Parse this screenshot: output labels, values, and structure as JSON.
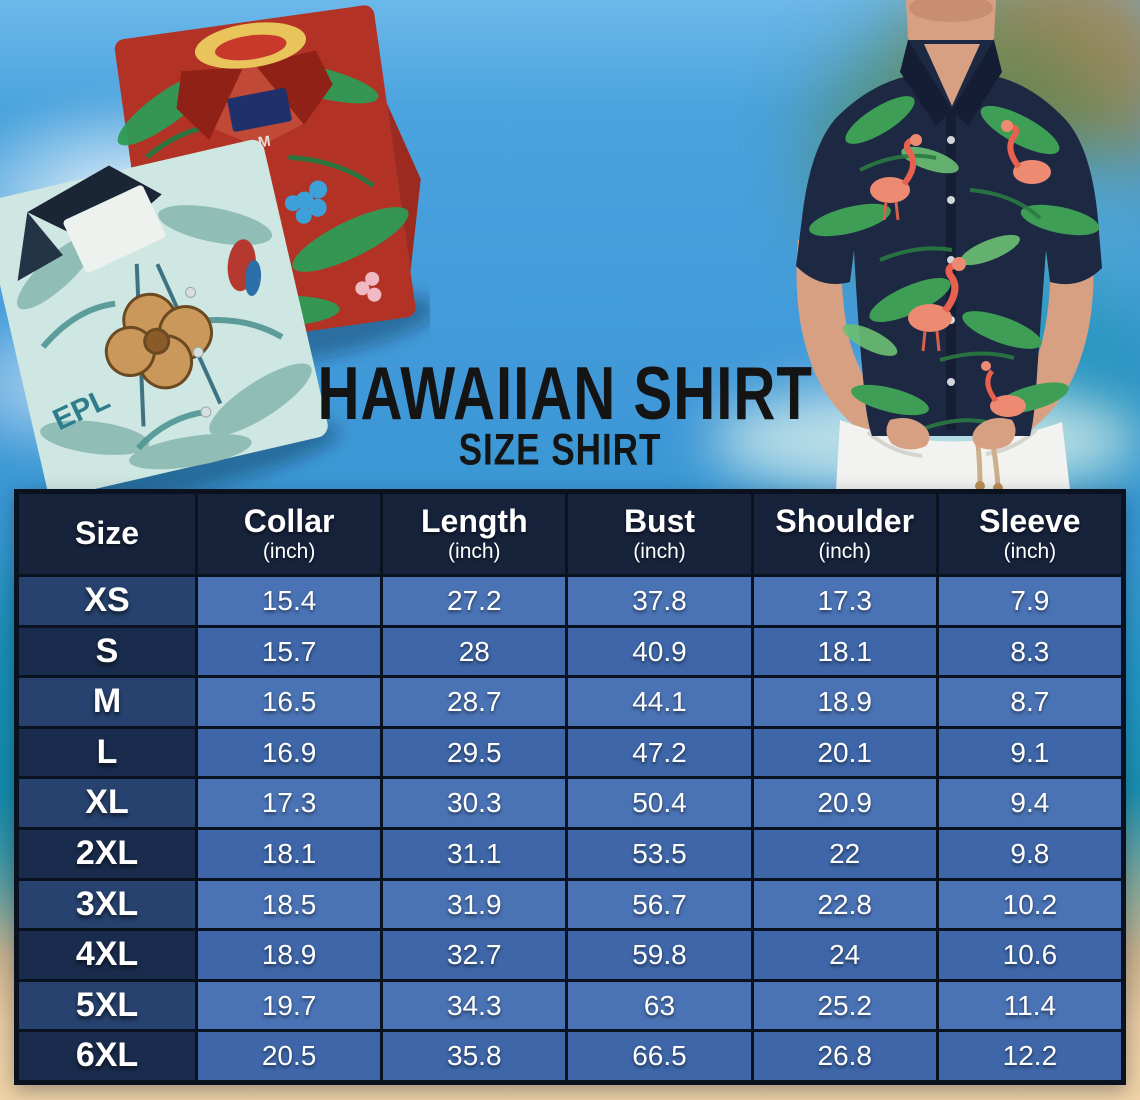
{
  "page": {
    "title": "HAWAIIAN SHIRT",
    "subtitle": "SIZE SHIRT"
  },
  "chart_data": {
    "type": "table",
    "title": "HAWAIIAN SHIRT",
    "subtitle": "SIZE SHIRT",
    "columns": [
      {
        "label": "Size",
        "unit": ""
      },
      {
        "label": "Collar",
        "unit": "(inch)"
      },
      {
        "label": "Length",
        "unit": "(inch)"
      },
      {
        "label": "Bust",
        "unit": "(inch)"
      },
      {
        "label": "Shoulder",
        "unit": "(inch)"
      },
      {
        "label": "Sleeve",
        "unit": "(inch)"
      }
    ],
    "rows": [
      {
        "size": "XS",
        "values": [
          "15.4",
          "27.2",
          "37.8",
          "17.3",
          "7.9"
        ]
      },
      {
        "size": "S",
        "values": [
          "15.7",
          "28",
          "40.9",
          "18.1",
          "8.3"
        ]
      },
      {
        "size": "M",
        "values": [
          "16.5",
          "28.7",
          "44.1",
          "18.9",
          "8.7"
        ]
      },
      {
        "size": "L",
        "values": [
          "16.9",
          "29.5",
          "47.2",
          "20.1",
          "9.1"
        ]
      },
      {
        "size": "XL",
        "values": [
          "17.3",
          "30.3",
          "50.4",
          "20.9",
          "9.4"
        ]
      },
      {
        "size": "2XL",
        "values": [
          "18.1",
          "31.1",
          "53.5",
          "22",
          "9.8"
        ]
      },
      {
        "size": "3XL",
        "values": [
          "18.5",
          "31.9",
          "56.7",
          "22.8",
          "10.2"
        ]
      },
      {
        "size": "4XL",
        "values": [
          "18.9",
          "32.7",
          "59.8",
          "24",
          "10.6"
        ]
      },
      {
        "size": "5XL",
        "values": [
          "19.7",
          "34.3",
          "63",
          "25.2",
          "11.4"
        ]
      },
      {
        "size": "6XL",
        "values": [
          "20.5",
          "35.8",
          "66.5",
          "26.8",
          "12.2"
        ]
      }
    ]
  },
  "photos": {
    "red_shirt_tag": "M",
    "teal_shirt_print": "EPL"
  },
  "colors": {
    "sky": "#4098d8",
    "sand": "#f0d4a7",
    "table_border": "#0a1220",
    "header_bg": "#17223b",
    "size_cell_light": "#27426f",
    "size_cell_dark": "#1a2c4d",
    "data_cell_light": "#4a73b5",
    "data_cell_dark": "#3e66a8",
    "title_text": "#141414",
    "table_text": "#ffffff",
    "red_shirt": "#b23325",
    "teal_shirt": "#cfe7e2",
    "model_shirt_navy": "#1d2842",
    "leaf_green": "#3f9e55",
    "flamingo_pink": "#ec8a72"
  }
}
